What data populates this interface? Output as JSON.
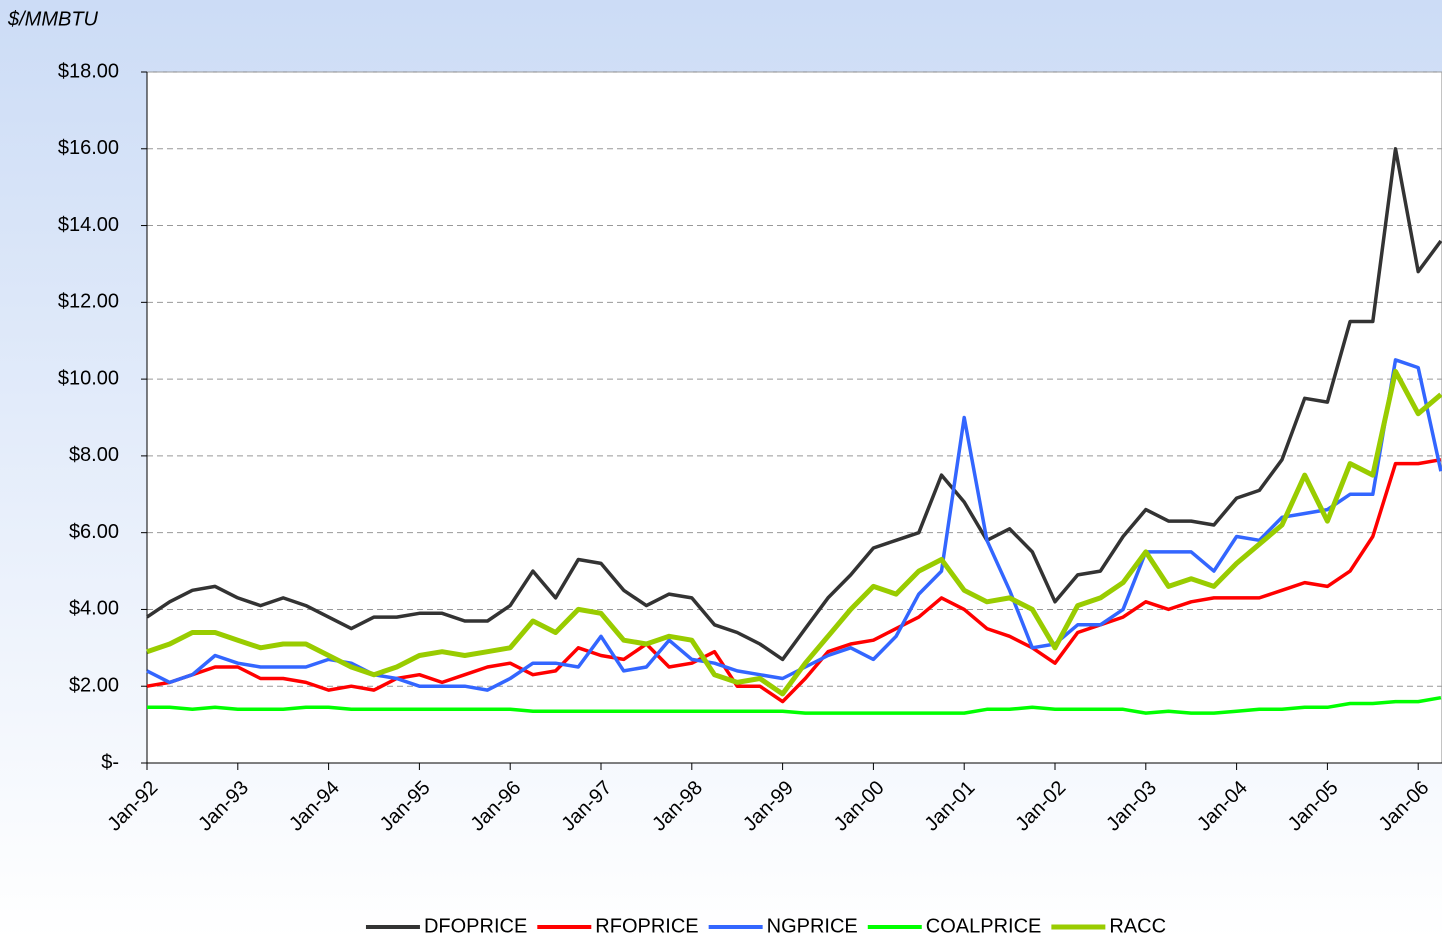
{
  "chart_data": {
    "type": "line",
    "y_label": "$/MMBTU",
    "categories": [
      "Jan-92",
      null,
      null,
      null,
      "Jan-93",
      null,
      null,
      null,
      "Jan-94",
      null,
      null,
      null,
      "Jan-95",
      null,
      null,
      null,
      "Jan-96",
      null,
      null,
      null,
      "Jan-97",
      null,
      null,
      null,
      "Jan-98",
      null,
      null,
      null,
      "Jan-99",
      null,
      null,
      null,
      "Jan-00",
      null,
      null,
      null,
      "Jan-01",
      null,
      null,
      null,
      "Jan-02",
      null,
      null,
      null,
      "Jan-03",
      null,
      null,
      null,
      "Jan-04",
      null,
      null,
      null,
      "Jan-05",
      null,
      null,
      null,
      "Jan-06",
      null
    ],
    "series": [
      {
        "name": "DFOPRICE",
        "color": "#333333",
        "values": [
          3.8,
          4.2,
          4.5,
          4.6,
          4.3,
          4.1,
          4.3,
          4.1,
          3.8,
          3.5,
          3.8,
          3.8,
          3.9,
          3.9,
          3.7,
          3.7,
          4.1,
          5.0,
          4.3,
          5.3,
          5.2,
          4.5,
          4.1,
          4.4,
          4.3,
          3.6,
          3.4,
          3.1,
          2.7,
          3.5,
          4.3,
          4.9,
          5.6,
          5.8,
          6.0,
          7.5,
          6.8,
          5.8,
          6.1,
          5.5,
          4.2,
          4.9,
          5.0,
          5.9,
          6.6,
          6.3,
          6.3,
          6.2,
          6.9,
          7.1,
          7.9,
          9.5,
          9.4,
          11.5,
          11.5,
          16.0,
          12.8,
          13.6
        ]
      },
      {
        "name": "RFOPRICE",
        "color": "#ff0000",
        "values": [
          2.0,
          2.1,
          2.3,
          2.5,
          2.5,
          2.2,
          2.2,
          2.1,
          1.9,
          2.0,
          1.9,
          2.2,
          2.3,
          2.1,
          2.3,
          2.5,
          2.6,
          2.3,
          2.4,
          3.0,
          2.8,
          2.7,
          3.1,
          2.5,
          2.6,
          2.9,
          2.0,
          2.0,
          1.6,
          2.2,
          2.9,
          3.1,
          3.2,
          3.5,
          3.8,
          4.3,
          4.0,
          3.5,
          3.3,
          3.0,
          2.6,
          3.4,
          3.6,
          3.8,
          4.2,
          4.0,
          4.2,
          4.3,
          4.3,
          4.3,
          4.5,
          4.7,
          4.6,
          5.0,
          5.9,
          7.8,
          7.8,
          7.9
        ]
      },
      {
        "name": "NGPRICE",
        "color": "#3366ff",
        "values": [
          2.4,
          2.1,
          2.3,
          2.8,
          2.6,
          2.5,
          2.5,
          2.5,
          2.7,
          2.6,
          2.3,
          2.2,
          2.0,
          2.0,
          2.0,
          1.9,
          2.2,
          2.6,
          2.6,
          2.5,
          3.3,
          2.4,
          2.5,
          3.2,
          2.7,
          2.6,
          2.4,
          2.3,
          2.2,
          2.5,
          2.8,
          3.0,
          2.7,
          3.3,
          4.4,
          5.0,
          9.0,
          5.8,
          4.5,
          3.0,
          3.1,
          3.6,
          3.6,
          4.0,
          5.5,
          5.5,
          5.5,
          5.0,
          5.9,
          5.8,
          6.4,
          6.5,
          6.6,
          7.0,
          7.0,
          10.5,
          10.3,
          7.6
        ]
      },
      {
        "name": "COALPRICE",
        "color": "#00ff00",
        "values": [
          1.45,
          1.45,
          1.4,
          1.45,
          1.4,
          1.4,
          1.4,
          1.45,
          1.45,
          1.4,
          1.4,
          1.4,
          1.4,
          1.4,
          1.4,
          1.4,
          1.4,
          1.35,
          1.35,
          1.35,
          1.35,
          1.35,
          1.35,
          1.35,
          1.35,
          1.35,
          1.35,
          1.35,
          1.35,
          1.3,
          1.3,
          1.3,
          1.3,
          1.3,
          1.3,
          1.3,
          1.3,
          1.4,
          1.4,
          1.45,
          1.4,
          1.4,
          1.4,
          1.4,
          1.3,
          1.35,
          1.3,
          1.3,
          1.35,
          1.4,
          1.4,
          1.45,
          1.45,
          1.55,
          1.55,
          1.6,
          1.6,
          1.7
        ]
      },
      {
        "name": "RACC",
        "color": "#99cc00",
        "values": [
          2.9,
          3.1,
          3.4,
          3.4,
          3.2,
          3.0,
          3.1,
          3.1,
          2.8,
          2.5,
          2.3,
          2.5,
          2.8,
          2.9,
          2.8,
          2.9,
          3.0,
          3.7,
          3.4,
          4.0,
          3.9,
          3.2,
          3.1,
          3.3,
          3.2,
          2.3,
          2.1,
          2.2,
          1.8,
          2.6,
          3.3,
          4.0,
          4.6,
          4.4,
          5.0,
          5.3,
          4.5,
          4.2,
          4.3,
          4.0,
          3.0,
          4.1,
          4.3,
          4.7,
          5.5,
          4.6,
          4.8,
          4.6,
          5.2,
          5.7,
          6.2,
          7.5,
          6.3,
          7.8,
          7.5,
          10.2,
          9.1,
          9.6
        ]
      }
    ],
    "ylim": [
      0,
      18
    ],
    "yticks": [
      {
        "value": 0,
        "label": "$-"
      },
      {
        "value": 2,
        "label": "$2.00"
      },
      {
        "value": 4,
        "label": "$4.00"
      },
      {
        "value": 6,
        "label": "$6.00"
      },
      {
        "value": 8,
        "label": "$8.00"
      },
      {
        "value": 10,
        "label": "$10.00"
      },
      {
        "value": 12,
        "label": "$12.00"
      },
      {
        "value": 14,
        "label": "$14.00"
      },
      {
        "value": 16,
        "label": "$16.00"
      },
      {
        "value": 18,
        "label": "$18.00"
      }
    ],
    "grid": true,
    "legend": "bottom"
  }
}
